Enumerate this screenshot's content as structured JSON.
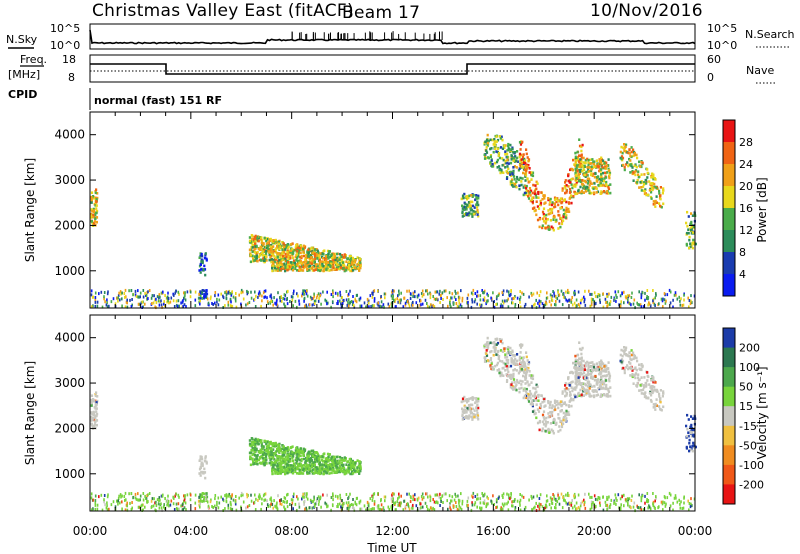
{
  "header": {
    "title": "Christmas Valley East (fitACF)",
    "beam": "Beam 17",
    "date": "10/Nov/2016"
  },
  "strip": {
    "nsky_label": "N.Sky",
    "nsky_ticks": [
      "10^5",
      "10^0"
    ],
    "nsearch_label": "N.Search",
    "nsearch_ticks": [
      "10^5",
      "10^0"
    ],
    "freq_label": "Freq.",
    "freq_unit": "[MHz]",
    "freq_ticks": [
      "18",
      "8"
    ],
    "nave_label": "Nave",
    "nave_ticks": [
      "60",
      "0"
    ],
    "cpid_label": "CPID",
    "cpid_value": "normal (fast) 151 RF"
  },
  "chart_data": [
    {
      "type": "heatmap",
      "name": "power-panel",
      "ylabel": "Slant Range [km]",
      "ylim": [
        180,
        4500
      ],
      "yticks": [
        "1000",
        "2000",
        "3000",
        "4000"
      ],
      "xlim": [
        0,
        24
      ],
      "colorbar_label": "Power [dB]",
      "colorbar_ticks": [
        "4",
        "8",
        "12",
        "16",
        "20",
        "24",
        "28"
      ],
      "colors": [
        "#0a1cf0",
        "#1a3cb0",
        "#2c8c5a",
        "#4aac4a",
        "#e8d81c",
        "#f0a018",
        "#f06414",
        "#e81414"
      ]
    },
    {
      "type": "heatmap",
      "name": "velocity-panel",
      "ylabel": "Slant Range [km]",
      "ylim": [
        180,
        4500
      ],
      "yticks": [
        "1000",
        "2000",
        "3000",
        "4000"
      ],
      "xlim": [
        0,
        24
      ],
      "xticks": [
        "00:00",
        "04:00",
        "08:00",
        "12:00",
        "16:00",
        "20:00",
        "00:00"
      ],
      "xlabel": "Time UT",
      "colorbar_label": "Velocity [m s⁻¹]",
      "colorbar_ticks": [
        "200",
        "100",
        "50",
        "15",
        "-15",
        "-50",
        "-100",
        "-200"
      ],
      "colors": [
        "#1c3ca8",
        "#2c7850",
        "#4ca84c",
        "#78d43c",
        "#c8c8c0",
        "#f0c040",
        "#f08c20",
        "#f05818",
        "#e81414"
      ]
    }
  ]
}
